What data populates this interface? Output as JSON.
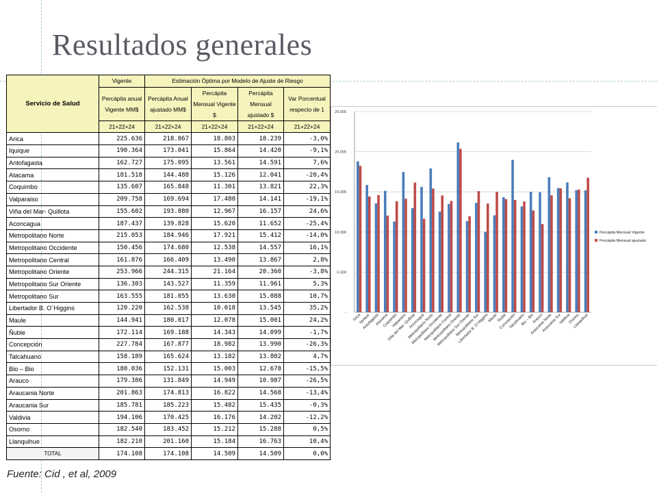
{
  "title": "Resultados generales",
  "source": "Fuente: Cid , et al, 2009",
  "table": {
    "header_row1": {
      "service": "Servicio de Salud",
      "vigente": "Vigente",
      "estimacion": "Estimación Óptima por Modelo de Ajuste de Riesgo"
    },
    "col_headers": [
      "Percápita anual Vigente MM$",
      "Percápita Anual ajustado MM$",
      "Percápita Mensual Vigente $",
      "Percápita Mensual ajustado $",
      "Var Porcentual respecto de 1"
    ],
    "sub_headers": [
      "21+22+24",
      "21+22+24",
      "21+22+24",
      "21+22+24",
      "21+22+24"
    ],
    "rows": [
      [
        "Arica",
        "225.636",
        "218.867",
        "18.803",
        "18.239",
        "-3,0%"
      ],
      [
        "Iquique",
        "190.364",
        "173.041",
        "15.864",
        "14.420",
        "-9,1%"
      ],
      [
        "Antofagasta",
        "162.727",
        "175.095",
        "13.561",
        "14.591",
        "7,6%"
      ],
      [
        "Atacama",
        "181.518",
        "144.488",
        "15.126",
        "12.041",
        "-20,4%"
      ],
      [
        "Coquimbo",
        "135.607",
        "165.848",
        "11.301",
        "13.821",
        "22,3%"
      ],
      [
        "Valparaiso",
        "209.758",
        "169.694",
        "17.480",
        "14.141",
        "-19,1%"
      ],
      [
        "Viña del Mar- Quillota",
        "155.602",
        "193.880",
        "12.967",
        "16.157",
        "24,6%"
      ],
      [
        "Aconcagua",
        "187.437",
        "139.828",
        "15.620",
        "11.652",
        "-25,4%"
      ],
      [
        "Metropolitano Norte",
        "215.053",
        "184.946",
        "17.921",
        "15.412",
        "-14,0%"
      ],
      [
        "Metropolitano Occidente",
        "150.456",
        "174.680",
        "12.538",
        "14.557",
        "16,1%"
      ],
      [
        "Metropolitano Central",
        "161.876",
        "166.409",
        "13.490",
        "13.867",
        "2,8%"
      ],
      [
        "Metropolitano Oriente",
        "253.966",
        "244.315",
        "21.164",
        "20.360",
        "-3,8%"
      ],
      [
        "Metropolitano Sur Oriente",
        "136.303",
        "143.527",
        "11.359",
        "11.961",
        "5,3%"
      ],
      [
        "Metropolitano Sur",
        "163.555",
        "181.055",
        "13.630",
        "15.088",
        "10,7%"
      ],
      [
        "Libertador B. O´Higgins",
        "120.220",
        "162.538",
        "10.018",
        "13.545",
        "35,2%"
      ],
      [
        "Maule",
        "144.941",
        "180.017",
        "12.078",
        "15.001",
        "24,2%"
      ],
      [
        "Ñuble",
        "172.114",
        "169.188",
        "14.343",
        "14.099",
        "-1,7%"
      ],
      [
        "Concepción",
        "227.784",
        "167.877",
        "18.982",
        "13.990",
        "-26,3%"
      ],
      [
        "Talcahuano",
        "158.189",
        "165.624",
        "13.182",
        "13.802",
        "4,7%"
      ],
      [
        "Bio – Bio",
        "180.036",
        "152.131",
        "15.003",
        "12.678",
        "-15,5%"
      ],
      [
        "Arauco",
        "179.386",
        "131.849",
        "14.949",
        "10.987",
        "-26,5%"
      ],
      [
        "Araucania Norte",
        "201.863",
        "174.813",
        "16.822",
        "14.568",
        "-13,4%"
      ],
      [
        "Araucania Sur",
        "185.781",
        "185.223",
        "15.482",
        "15.435",
        "-0,3%"
      ],
      [
        "Valdivia",
        "194.106",
        "170.425",
        "16.176",
        "14.202",
        "-12,2%"
      ],
      [
        "Osorno",
        "182.540",
        "183.452",
        "15.212",
        "15.288",
        "0,5%"
      ],
      [
        "Llanquihue",
        "182.210",
        "201.160",
        "15.184",
        "16.763",
        "10,4%"
      ]
    ],
    "total": [
      "TOTAL",
      "174.108",
      "174.108",
      "14.509",
      "14.509",
      "0,0%"
    ]
  },
  "chart_data": {
    "type": "bar",
    "categories": [
      "Arica",
      "Iquique",
      "Antofagasta",
      "Atacama",
      "Coquimbo",
      "Valparaiso",
      "Viña del Mar- Quillota",
      "Aconcagua",
      "Metropolitano Norte",
      "Metropolitano Occidente",
      "Metropolitano Central",
      "Metropolitano Oriente",
      "Metropolitano Sur Oriente",
      "Metropolitano Sur",
      "Libertador B. O´Higgins",
      "Maule",
      "Ñuble",
      "Concepción",
      "Talcahuano",
      "Bio – Bio",
      "Arauco",
      "Araucania Norte",
      "Araucania Sur",
      "Valdivia",
      "Osorno",
      "Llanquihue"
    ],
    "series": [
      {
        "name": "Percápita Mensual Vigente",
        "color": "#4a7ebb",
        "values": [
          18803,
          15864,
          13561,
          15126,
          11301,
          17480,
          12967,
          15620,
          17921,
          12538,
          13490,
          21164,
          11359,
          13630,
          10018,
          12078,
          14343,
          18982,
          13182,
          15003,
          14949,
          16822,
          15482,
          16176,
          15212,
          15184
        ]
      },
      {
        "name": "Percápita Mensual ajustado",
        "color": "#be4b48",
        "values": [
          18239,
          14420,
          14591,
          12041,
          13821,
          14141,
          16157,
          11652,
          15412,
          14557,
          13867,
          20360,
          11961,
          15088,
          13545,
          15001,
          14099,
          13990,
          13802,
          12678,
          10987,
          14568,
          15435,
          14202,
          15288,
          16763
        ]
      }
    ],
    "y_ticks": [
      "-",
      "5.000",
      "10.000",
      "15.000",
      "20.000",
      "25.000"
    ],
    "ylim": [
      0,
      25000
    ],
    "legend_position": "right"
  }
}
